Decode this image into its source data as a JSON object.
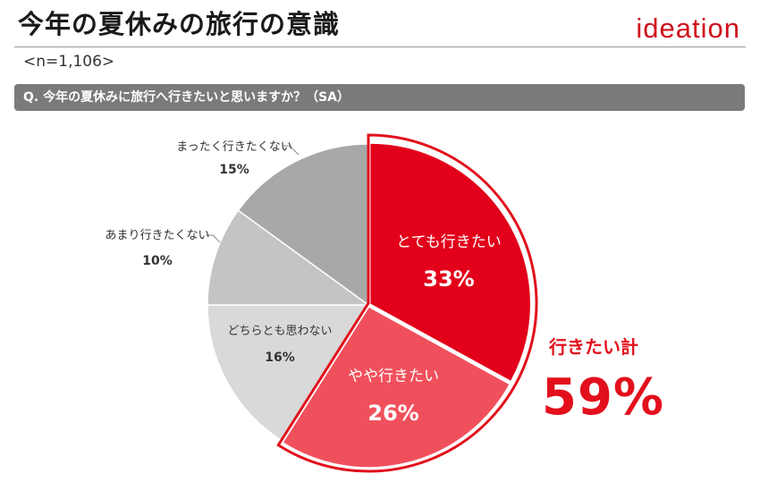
{
  "header": {
    "title": "今年の夏休みの旅行の意識",
    "logo_text": "ideation",
    "sample_size": "<n=1,106>"
  },
  "question": "Q. 今年の夏休みに旅行へ行きたいと思いますか？（SA）",
  "summary": {
    "label": "行きたい計",
    "value": "59%"
  },
  "colors": {
    "accent": "#e2101c",
    "very_want": "#e2001a",
    "somewhat_want": "#f0505c",
    "neither": "#d9d9d9",
    "not_really": "#c4c4c4",
    "not_at_all": "#a8a8a8"
  },
  "chart_data": {
    "type": "pie",
    "start": "12 o'clock",
    "direction": "clockwise",
    "slices": [
      {
        "label": "とても行きたい",
        "value": 33,
        "value_label": "33%",
        "color": "#e2001a"
      },
      {
        "label": "やや行きたい",
        "value": 26,
        "value_label": "26%",
        "color": "#f0505c"
      },
      {
        "label": "どちらとも思わない",
        "value": 16,
        "value_label": "16%",
        "color": "#d9d9d9"
      },
      {
        "label": "あまり行きたくない",
        "value": 10,
        "value_label": "10%",
        "color": "#c4c4c4"
      },
      {
        "label": "まったく行きたくない",
        "value": 15,
        "value_label": "15%",
        "color": "#a8a8a8"
      }
    ],
    "highlight_group": {
      "slices": [
        0,
        1
      ],
      "label": "行きたい計",
      "value": "59%"
    }
  }
}
